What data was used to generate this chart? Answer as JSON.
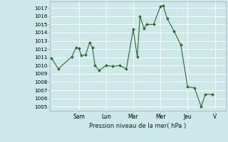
{
  "xlabel": "Pression niveau de la mer( hPa )",
  "ylim": [
    1004.5,
    1017.8
  ],
  "yticks": [
    1005,
    1006,
    1007,
    1008,
    1009,
    1010,
    1011,
    1012,
    1013,
    1014,
    1015,
    1016,
    1017
  ],
  "day_labels": [
    "Sam",
    "Lun",
    "Mar",
    "Mer",
    "Jeu",
    "V"
  ],
  "day_positions": [
    2,
    4,
    6,
    8,
    10,
    12
  ],
  "xlim": [
    -0.1,
    12.8
  ],
  "bg_color": "#cce8e8",
  "grid_color": "#ffffff",
  "line_color": "#2d6a2d",
  "marker_color": "#2d6a2d",
  "series": [
    [
      0,
      1010.9
    ],
    [
      0.5,
      1009.6
    ],
    [
      1.5,
      1011.1
    ],
    [
      1.8,
      1012.2
    ],
    [
      2.0,
      1012.1
    ],
    [
      2.2,
      1011.2
    ],
    [
      2.5,
      1011.3
    ],
    [
      2.8,
      1012.8
    ],
    [
      3.0,
      1012.2
    ],
    [
      3.2,
      1010.0
    ],
    [
      3.5,
      1009.4
    ],
    [
      4.0,
      1010.0
    ],
    [
      4.5,
      1009.9
    ],
    [
      5.0,
      1010.0
    ],
    [
      5.5,
      1009.6
    ],
    [
      6.0,
      1014.4
    ],
    [
      6.3,
      1011.1
    ],
    [
      6.5,
      1016.0
    ],
    [
      6.8,
      1014.5
    ],
    [
      7.0,
      1015.0
    ],
    [
      7.5,
      1015.0
    ],
    [
      8.0,
      1017.2
    ],
    [
      8.2,
      1017.3
    ],
    [
      8.5,
      1015.7
    ],
    [
      9.0,
      1014.2
    ],
    [
      9.5,
      1012.5
    ],
    [
      10.0,
      1007.4
    ],
    [
      10.5,
      1007.3
    ],
    [
      11.0,
      1005.0
    ],
    [
      11.3,
      1006.5
    ],
    [
      11.8,
      1006.5
    ]
  ]
}
